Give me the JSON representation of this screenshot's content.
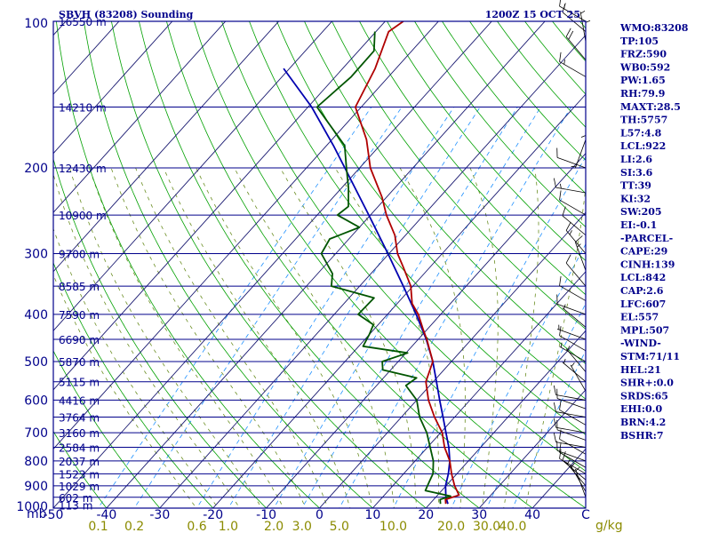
{
  "chart_data": {
    "type": "skew-t sounding",
    "title": "SBVH (83208) Sounding",
    "datetime": "1200Z 15 OCT 25",
    "ylabel": "mb",
    "mixing_ratio_unit": "g/kg",
    "pressure_ticks": [
      100,
      200,
      300,
      400,
      500,
      600,
      700,
      800,
      900,
      1000
    ],
    "pressure_range": [
      1000,
      100
    ],
    "temperature_ticks": [
      -50,
      -40,
      -30,
      -20,
      -10,
      0,
      10,
      20,
      30,
      40
    ],
    "temperature_range_at_1000mb": [
      -50,
      50
    ],
    "mixing_ratio_ticks": [
      "0.1",
      "0.2",
      "0.6",
      "1.0",
      "2.0",
      "3.0",
      "5.0",
      "10.0",
      "20.0",
      "30.0",
      "40.0"
    ],
    "height_labels": [
      {
        "p": 100,
        "label": "16550 m"
      },
      {
        "p": 150,
        "label": "14210 m"
      },
      {
        "p": 200,
        "label": "12430 m"
      },
      {
        "p": 250,
        "label": "10900 m"
      },
      {
        "p": 300,
        "label": "9700 m"
      },
      {
        "p": 350,
        "label": "8585 m"
      },
      {
        "p": 400,
        "label": "7590 m"
      },
      {
        "p": 450,
        "label": "6690 m"
      },
      {
        "p": 500,
        "label": "5870 m"
      },
      {
        "p": 550,
        "label": "5115 m"
      },
      {
        "p": 600,
        "label": "4416 m"
      },
      {
        "p": 650,
        "label": "3764 m"
      },
      {
        "p": 700,
        "label": "3160 m"
      },
      {
        "p": 750,
        "label": "2584 m"
      },
      {
        "p": 800,
        "label": "2037 m"
      },
      {
        "p": 850,
        "label": "1523 m"
      },
      {
        "p": 900,
        "label": "1029 m"
      },
      {
        "p": 950,
        "label": "602 m"
      },
      {
        "p": 985,
        "label": "113 m"
      }
    ],
    "temperature_profile": [
      {
        "p": 980,
        "t": 23.0
      },
      {
        "p": 960,
        "t": 22.2
      },
      {
        "p": 940,
        "t": 24.0
      },
      {
        "p": 900,
        "t": 21.6
      },
      {
        "p": 850,
        "t": 19.0
      },
      {
        "p": 800,
        "t": 16.5
      },
      {
        "p": 750,
        "t": 13.2
      },
      {
        "p": 700,
        "t": 10.3
      },
      {
        "p": 650,
        "t": 6.2
      },
      {
        "p": 600,
        "t": 2.2
      },
      {
        "p": 550,
        "t": -1.4
      },
      {
        "p": 500,
        "t": -3.5
      },
      {
        "p": 480,
        "t": -5.4
      },
      {
        "p": 450,
        "t": -8.4
      },
      {
        "p": 430,
        "t": -10.7
      },
      {
        "p": 400,
        "t": -14.2
      },
      {
        "p": 380,
        "t": -17.2
      },
      {
        "p": 350,
        "t": -20.4
      },
      {
        "p": 320,
        "t": -25.0
      },
      {
        "p": 300,
        "t": -28.4
      },
      {
        "p": 275,
        "t": -32.0
      },
      {
        "p": 250,
        "t": -37.0
      },
      {
        "p": 230,
        "t": -40.8
      },
      {
        "p": 200,
        "t": -48.0
      },
      {
        "p": 175,
        "t": -53.5
      },
      {
        "p": 150,
        "t": -61.1
      },
      {
        "p": 125,
        "t": -63.9
      },
      {
        "p": 105,
        "t": -67.6
      },
      {
        "p": 100,
        "t": -66.6
      }
    ],
    "dewpoint_profile": [
      {
        "p": 980,
        "t": 22.0
      },
      {
        "p": 960,
        "t": 21.2
      },
      {
        "p": 945,
        "t": 22.6
      },
      {
        "p": 920,
        "t": 16.9
      },
      {
        "p": 880,
        "t": 16.1
      },
      {
        "p": 850,
        "t": 15.5
      },
      {
        "p": 800,
        "t": 13.4
      },
      {
        "p": 750,
        "t": 10.5
      },
      {
        "p": 700,
        "t": 7.4
      },
      {
        "p": 650,
        "t": 3.4
      },
      {
        "p": 600,
        "t": 0.0
      },
      {
        "p": 560,
        "t": -4.5
      },
      {
        "p": 540,
        "t": -3.8
      },
      {
        "p": 520,
        "t": -11.5
      },
      {
        "p": 500,
        "t": -13.0
      },
      {
        "p": 480,
        "t": -9.7
      },
      {
        "p": 465,
        "t": -19.2
      },
      {
        "p": 440,
        "t": -20.0
      },
      {
        "p": 420,
        "t": -20.9
      },
      {
        "p": 400,
        "t": -25.5
      },
      {
        "p": 370,
        "t": -25.3
      },
      {
        "p": 350,
        "t": -35.3
      },
      {
        "p": 330,
        "t": -37.2
      },
      {
        "p": 300,
        "t": -42.7
      },
      {
        "p": 280,
        "t": -43.6
      },
      {
        "p": 265,
        "t": -40.0
      },
      {
        "p": 250,
        "t": -46.2
      },
      {
        "p": 240,
        "t": -45.6
      },
      {
        "p": 220,
        "t": -48.7
      },
      {
        "p": 200,
        "t": -52.5
      },
      {
        "p": 180,
        "t": -56.6
      },
      {
        "p": 150,
        "t": -68.3
      },
      {
        "p": 130,
        "t": -67.0
      },
      {
        "p": 115,
        "t": -67.1
      },
      {
        "p": 105,
        "t": -70.2
      }
    ],
    "parcel_profile": [
      {
        "p": 980,
        "t": 23.4
      },
      {
        "p": 950,
        "t": 21.9
      },
      {
        "p": 900,
        "t": 19.9
      },
      {
        "p": 850,
        "t": 18.4
      },
      {
        "p": 800,
        "t": 16.5
      },
      {
        "p": 750,
        "t": 14.0
      },
      {
        "p": 700,
        "t": 11.0
      },
      {
        "p": 650,
        "t": 7.8
      },
      {
        "p": 600,
        "t": 4.3
      },
      {
        "p": 550,
        "t": 0.6
      },
      {
        "p": 500,
        "t": -3.5
      },
      {
        "p": 450,
        "t": -8.5
      },
      {
        "p": 400,
        "t": -14.6
      },
      {
        "p": 350,
        "t": -21.8
      },
      {
        "p": 300,
        "t": -30.2
      },
      {
        "p": 250,
        "t": -40.3
      },
      {
        "p": 200,
        "t": -52.8
      },
      {
        "p": 180,
        "t": -58.7
      },
      {
        "p": 150,
        "t": -69.3
      },
      {
        "p": 125,
        "t": -81.1
      }
    ],
    "wind_barbs": [
      {
        "p": 100,
        "dir": 300,
        "spd": 15
      },
      {
        "p": 105,
        "dir": 310,
        "spd": 10
      },
      {
        "p": 110,
        "dir": 350,
        "spd": 5
      },
      {
        "p": 115,
        "dir": 360,
        "spd": 5
      },
      {
        "p": 120,
        "dir": 320,
        "spd": 20
      },
      {
        "p": 130,
        "dir": 300,
        "spd": 15
      },
      {
        "p": 150,
        "dir": 180,
        "spd": 5
      },
      {
        "p": 175,
        "dir": 200,
        "spd": 5
      },
      {
        "p": 200,
        "dir": 290,
        "spd": 10
      },
      {
        "p": 225,
        "dir": 280,
        "spd": 15
      },
      {
        "p": 250,
        "dir": 300,
        "spd": 10
      },
      {
        "p": 275,
        "dir": 310,
        "spd": 10
      },
      {
        "p": 300,
        "dir": 320,
        "spd": 15
      },
      {
        "p": 325,
        "dir": 340,
        "spd": 15
      },
      {
        "p": 350,
        "dir": 320,
        "spd": 10
      },
      {
        "p": 375,
        "dir": 300,
        "spd": 10
      },
      {
        "p": 400,
        "dir": 290,
        "spd": 10
      },
      {
        "p": 425,
        "dir": 310,
        "spd": 5
      },
      {
        "p": 450,
        "dir": 290,
        "spd": 5
      },
      {
        "p": 475,
        "dir": 300,
        "spd": 10
      },
      {
        "p": 500,
        "dir": 300,
        "spd": 5
      },
      {
        "p": 525,
        "dir": 320,
        "spd": 5
      },
      {
        "p": 550,
        "dir": 310,
        "spd": 5
      },
      {
        "p": 575,
        "dir": 330,
        "spd": 5
      },
      {
        "p": 600,
        "dir": 280,
        "spd": 10
      },
      {
        "p": 625,
        "dir": 290,
        "spd": 10
      },
      {
        "p": 650,
        "dir": 280,
        "spd": 10
      },
      {
        "p": 675,
        "dir": 300,
        "spd": 10
      },
      {
        "p": 700,
        "dir": 280,
        "spd": 10
      },
      {
        "p": 725,
        "dir": 290,
        "spd": 10
      },
      {
        "p": 750,
        "dir": 280,
        "spd": 10
      },
      {
        "p": 775,
        "dir": 300,
        "spd": 10
      },
      {
        "p": 800,
        "dir": 290,
        "spd": 10
      },
      {
        "p": 825,
        "dir": 300,
        "spd": 10
      },
      {
        "p": 850,
        "dir": 300,
        "spd": 10
      },
      {
        "p": 875,
        "dir": 310,
        "spd": 10
      },
      {
        "p": 900,
        "dir": 320,
        "spd": 5
      },
      {
        "p": 925,
        "dir": 330,
        "spd": 5
      },
      {
        "p": 950,
        "dir": 340,
        "spd": 5
      }
    ],
    "indices": [
      "WMO:83208",
      "TP:105",
      "FRZ:590",
      "WB0:592",
      "PW:1.65",
      "RH:79.9",
      "MAXT:28.5",
      "TH:5757",
      "L57:4.8",
      "LCL:922",
      "LI:2.6",
      "SI:3.6",
      "TT:39",
      "KI:32",
      "SW:205",
      "EI:-0.1",
      "-PARCEL-",
      "CAPE:29",
      "CINH:139",
      "LCL:842",
      "CAP:2.6",
      "LFC:607",
      "EL:557",
      "MPL:507",
      "-WIND-",
      "STM:71/11",
      "HEL:21",
      "SHR+:0.0",
      "SRDS:65",
      "EHI:0.0",
      "BRN:4.2",
      "BSHR:7"
    ],
    "colors": {
      "frame": "#00008b",
      "isobar": "#00008b",
      "isotherm": "#191970",
      "dry_adiabat": "#00a000",
      "moist_adiabat": "#6b8e23",
      "mixing_ratio": "#1e90ff",
      "temperature": "#b00000",
      "dewpoint": "#005500",
      "parcel": "#0000b0",
      "mixing_ratio_label": "#8b8b00"
    }
  }
}
